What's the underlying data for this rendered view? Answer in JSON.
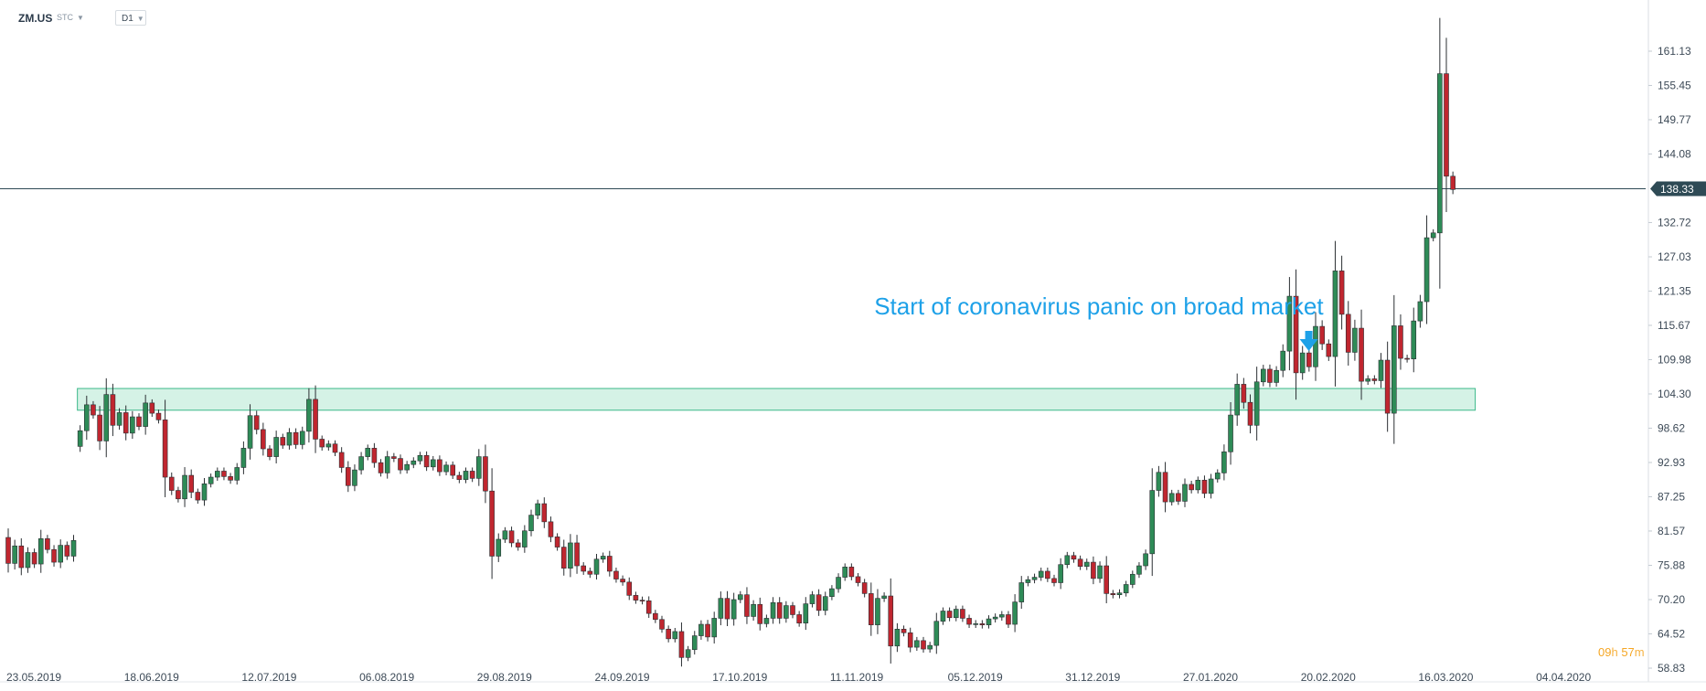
{
  "header": {
    "symbol": "ZM.US",
    "type_label": "STC",
    "timeframe": "D1"
  },
  "timer": {
    "hours": "09",
    "hours_unit": "h",
    "minutes": "57",
    "minutes_unit": "m"
  },
  "chart_data": {
    "type": "candlestick",
    "ylim": [
      58.83,
      168
    ],
    "y_ticks": [
      "161.13",
      "155.45",
      "149.77",
      "144.08",
      "138.33",
      "132.72",
      "127.03",
      "121.35",
      "115.67",
      "109.98",
      "104.30",
      "98.62",
      "92.93",
      "87.25",
      "81.57",
      "75.88",
      "70.20",
      "64.52",
      "58.83"
    ],
    "x_ticks": [
      "23.05.2019",
      "18.06.2019",
      "12.07.2019",
      "06.08.2019",
      "29.08.2019",
      "24.09.2019",
      "17.10.2019",
      "11.11.2019",
      "05.12.2019",
      "31.12.2019",
      "27.01.2020",
      "20.02.2020",
      "16.03.2020",
      "04.04.2020"
    ],
    "x_tick_index": [
      0,
      18,
      36,
      54,
      72,
      90,
      108,
      126,
      144,
      162,
      180,
      198,
      216,
      234
    ],
    "current_price": "138.33",
    "support_zone": {
      "low": 101.6,
      "high": 105.2,
      "start_index": 11,
      "end_index": 224
    },
    "annotation": {
      "text": "Start of coronavirus panic on broad market",
      "index": 197,
      "price": 110
    },
    "colors": {
      "up": "#2e8b57",
      "down": "#c0262f",
      "zone_fill": "#d5f2e6",
      "zone_stroke": "#3bb88a",
      "annotation": "#1ea1e8",
      "price_line": "#2e4a55"
    },
    "candles": [
      [
        80.5,
        76.2
      ],
      [
        76.2,
        79.1
      ],
      [
        79.1,
        75.5
      ],
      [
        75.5,
        78.0
      ],
      [
        78.0,
        76.1
      ],
      [
        76.1,
        80.3
      ],
      [
        80.3,
        78.5
      ],
      [
        78.5,
        76.4
      ],
      [
        76.4,
        79.2
      ],
      [
        79.2,
        77.4
      ],
      [
        77.4,
        80.0
      ],
      [
        95.6,
        98.2
      ],
      [
        98.2,
        102.5
      ],
      [
        102.5,
        100.8
      ],
      [
        100.8,
        96.5
      ],
      [
        96.5,
        104.2
      ],
      [
        104.2,
        99.1
      ],
      [
        99.1,
        101.2
      ],
      [
        101.2,
        97.8
      ],
      [
        97.8,
        100.5
      ],
      [
        100.5,
        98.9
      ],
      [
        98.9,
        102.8
      ],
      [
        102.8,
        101.1
      ],
      [
        101.1,
        100.0
      ],
      [
        100.0,
        90.5
      ],
      [
        90.5,
        88.3
      ],
      [
        88.3,
        86.9
      ],
      [
        86.9,
        90.8
      ],
      [
        90.8,
        88.0
      ],
      [
        88.0,
        86.7
      ],
      [
        86.7,
        89.4
      ],
      [
        89.4,
        90.5
      ],
      [
        90.5,
        91.5
      ],
      [
        91.5,
        90.6
      ],
      [
        90.6,
        90.0
      ],
      [
        90.0,
        92.1
      ],
      [
        92.1,
        95.3
      ],
      [
        95.3,
        100.7
      ],
      [
        100.7,
        98.4
      ],
      [
        98.4,
        95.2
      ],
      [
        95.2,
        93.9
      ],
      [
        93.9,
        97.1
      ],
      [
        97.1,
        95.8
      ],
      [
        95.8,
        97.9
      ],
      [
        97.9,
        95.9
      ],
      [
        95.9,
        98.1
      ],
      [
        98.1,
        103.4
      ],
      [
        103.4,
        96.8
      ],
      [
        96.8,
        95.5
      ],
      [
        95.5,
        96.0
      ],
      [
        96.0,
        94.6
      ],
      [
        94.6,
        92.1
      ],
      [
        92.1,
        89.1
      ],
      [
        89.1,
        91.7
      ],
      [
        91.7,
        93.9
      ],
      [
        93.9,
        95.3
      ],
      [
        95.3,
        92.9
      ],
      [
        92.9,
        91.2
      ],
      [
        91.2,
        93.9
      ],
      [
        93.9,
        93.6
      ],
      [
        93.6,
        91.7
      ],
      [
        91.7,
        92.6
      ],
      [
        92.6,
        93.2
      ],
      [
        93.2,
        94.1
      ],
      [
        94.1,
        92.2
      ],
      [
        92.2,
        93.4
      ],
      [
        93.4,
        91.4
      ],
      [
        91.4,
        92.5
      ],
      [
        92.5,
        90.8
      ],
      [
        90.8,
        90.1
      ],
      [
        90.1,
        91.5
      ],
      [
        91.5,
        90.3
      ],
      [
        90.3,
        93.9
      ],
      [
        93.9,
        88.2
      ],
      [
        88.2,
        77.4
      ],
      [
        77.4,
        80.2
      ],
      [
        80.2,
        81.6
      ],
      [
        81.6,
        79.6
      ],
      [
        79.6,
        78.9
      ],
      [
        78.9,
        81.6
      ],
      [
        81.6,
        84.2
      ],
      [
        84.2,
        86.1
      ],
      [
        86.1,
        83.1
      ],
      [
        83.1,
        80.6
      ],
      [
        80.6,
        78.9
      ],
      [
        78.9,
        75.4
      ],
      [
        75.4,
        79.6
      ],
      [
        79.6,
        75.8
      ],
      [
        75.8,
        74.9
      ],
      [
        74.9,
        74.4
      ],
      [
        74.4,
        76.9
      ],
      [
        76.9,
        77.4
      ],
      [
        77.4,
        74.9
      ],
      [
        74.9,
        73.6
      ],
      [
        73.6,
        73.1
      ],
      [
        73.1,
        70.9
      ],
      [
        70.9,
        70.1
      ],
      [
        70.1,
        70.0
      ],
      [
        70.0,
        67.9
      ],
      [
        67.9,
        66.9
      ],
      [
        66.9,
        65.3
      ],
      [
        65.3,
        63.7
      ],
      [
        63.7,
        64.9
      ],
      [
        64.9,
        60.6
      ],
      [
        60.6,
        61.9
      ],
      [
        61.9,
        64.2
      ],
      [
        64.2,
        66.1
      ],
      [
        66.1,
        64.0
      ],
      [
        64.0,
        67.1
      ],
      [
        67.1,
        70.4
      ],
      [
        70.4,
        67.0
      ],
      [
        67.0,
        70.2
      ],
      [
        70.2,
        71.0
      ],
      [
        71.0,
        67.4
      ],
      [
        67.4,
        69.4
      ],
      [
        69.4,
        66.2
      ],
      [
        66.2,
        67.1
      ],
      [
        67.1,
        69.7
      ],
      [
        69.7,
        67.1
      ],
      [
        67.1,
        69.2
      ],
      [
        69.2,
        67.7
      ],
      [
        67.7,
        66.3
      ],
      [
        66.3,
        69.5
      ],
      [
        69.5,
        71.0
      ],
      [
        71.0,
        68.4
      ],
      [
        68.4,
        70.7
      ],
      [
        70.7,
        72.0
      ],
      [
        72.0,
        73.9
      ],
      [
        73.9,
        75.6
      ],
      [
        75.6,
        74.0
      ],
      [
        74.0,
        73.0
      ],
      [
        73.0,
        71.2
      ],
      [
        71.2,
        66.0
      ],
      [
        66.0,
        70.4
      ],
      [
        70.4,
        70.8
      ],
      [
        70.8,
        62.5
      ],
      [
        62.5,
        65.3
      ],
      [
        65.3,
        64.7
      ],
      [
        64.7,
        62.3
      ],
      [
        62.3,
        63.4
      ],
      [
        63.4,
        62.0
      ],
      [
        62.0,
        62.6
      ],
      [
        62.6,
        66.6
      ],
      [
        66.6,
        68.3
      ],
      [
        68.3,
        67.2
      ],
      [
        67.2,
        68.6
      ],
      [
        68.6,
        67.1
      ],
      [
        67.1,
        66.1
      ],
      [
        66.1,
        66.2
      ],
      [
        66.2,
        66.0
      ],
      [
        66.0,
        67.0
      ],
      [
        67.0,
        67.3
      ],
      [
        67.3,
        67.7
      ],
      [
        67.7,
        66.1
      ],
      [
        66.1,
        69.8
      ],
      [
        69.8,
        73.0
      ],
      [
        73.0,
        73.5
      ],
      [
        73.5,
        73.9
      ],
      [
        73.9,
        74.9
      ],
      [
        74.9,
        73.7
      ],
      [
        73.7,
        73.0
      ],
      [
        73.0,
        76.0
      ],
      [
        76.0,
        77.5
      ],
      [
        77.5,
        76.9
      ],
      [
        76.9,
        75.7
      ],
      [
        75.7,
        76.4
      ],
      [
        76.4,
        73.7
      ],
      [
        73.7,
        75.8
      ],
      [
        75.8,
        71.2
      ],
      [
        71.2,
        71.0
      ],
      [
        71.0,
        71.3
      ],
      [
        71.3,
        72.7
      ],
      [
        72.7,
        74.4
      ],
      [
        74.4,
        75.8
      ],
      [
        75.8,
        77.8
      ],
      [
        77.8,
        88.3
      ],
      [
        88.3,
        91.3
      ],
      [
        91.3,
        86.4
      ],
      [
        86.4,
        87.8
      ],
      [
        87.8,
        86.5
      ],
      [
        86.5,
        89.3
      ],
      [
        89.3,
        88.4
      ],
      [
        88.4,
        90.0
      ],
      [
        90.0,
        87.8
      ],
      [
        87.8,
        90.2
      ],
      [
        90.2,
        91.2
      ],
      [
        91.2,
        94.7
      ],
      [
        94.7,
        100.8
      ],
      [
        100.8,
        105.9
      ],
      [
        105.9,
        102.9
      ],
      [
        102.9,
        99.1
      ],
      [
        99.1,
        106.3
      ],
      [
        106.3,
        108.4
      ],
      [
        108.4,
        106.2
      ],
      [
        106.2,
        108.2
      ],
      [
        108.2,
        111.4
      ],
      [
        111.4,
        120.5
      ],
      [
        120.5,
        107.8
      ],
      [
        107.8,
        111.1
      ],
      [
        111.1,
        108.8
      ],
      [
        108.8,
        115.5
      ],
      [
        115.5,
        112.6
      ],
      [
        112.6,
        110.5
      ],
      [
        110.5,
        124.7
      ],
      [
        124.7,
        117.5
      ],
      [
        117.5,
        111.2
      ],
      [
        111.2,
        115.2
      ],
      [
        115.2,
        106.4
      ],
      [
        106.4,
        106.8
      ],
      [
        106.8,
        106.5
      ],
      [
        106.5,
        109.9
      ],
      [
        109.9,
        101.1
      ],
      [
        101.1,
        115.6
      ],
      [
        115.6,
        110.2
      ],
      [
        110.2,
        110.1
      ],
      [
        110.1,
        116.4
      ],
      [
        116.4,
        119.6
      ],
      [
        119.6,
        130.2
      ],
      [
        130.2,
        131.0
      ],
      [
        131.0,
        157.4
      ],
      [
        157.4,
        140.4
      ],
      [
        140.4,
        138.2
      ]
    ]
  }
}
